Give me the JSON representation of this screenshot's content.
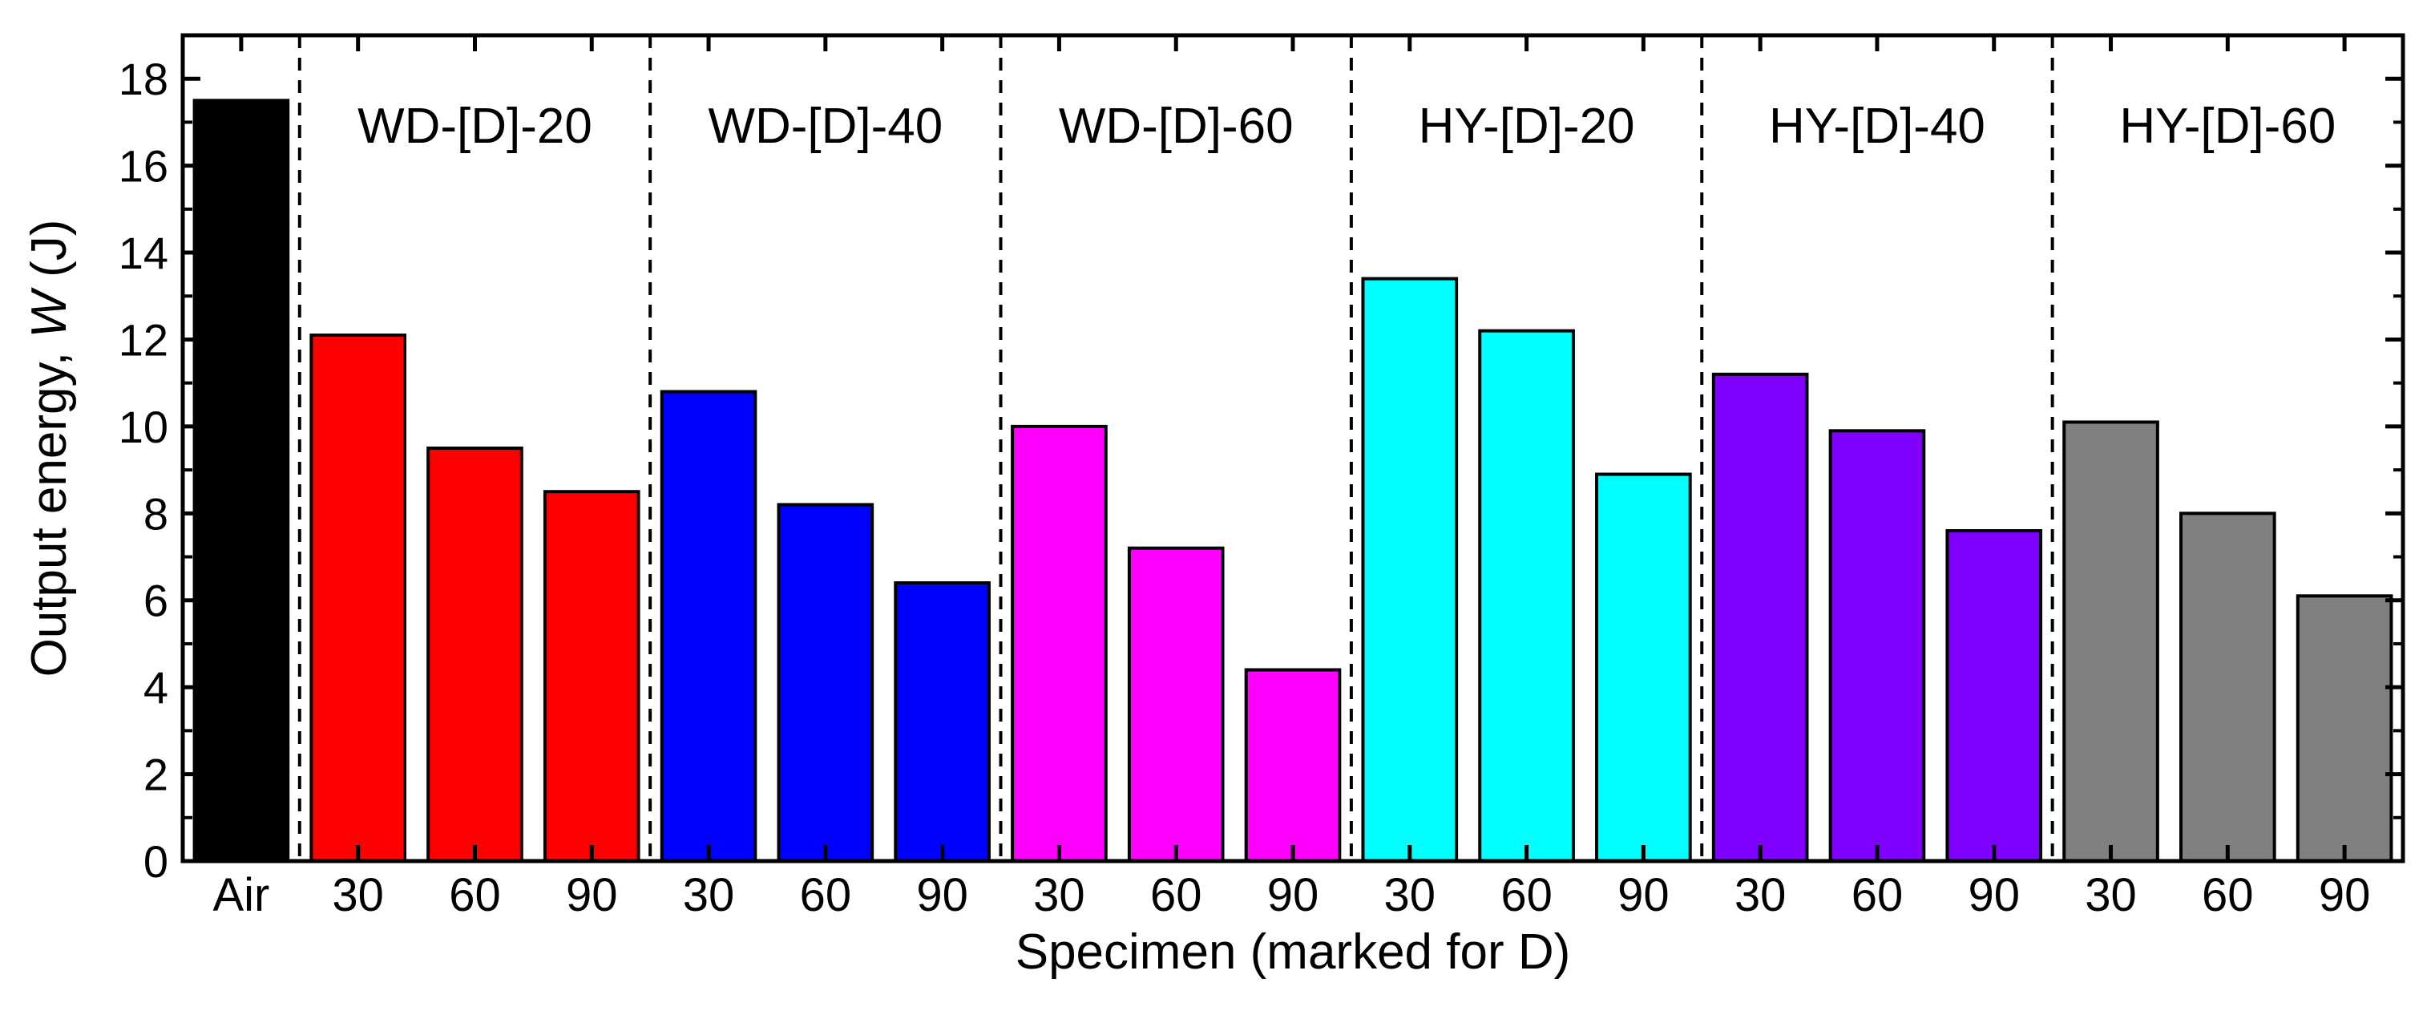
{
  "chart_data": {
    "type": "bar",
    "title": "",
    "xlabel": "Specimen (marked for D)",
    "ylabel": {
      "prefix": "Output energy, ",
      "italic": "W",
      "suffix": " (J)"
    },
    "ylim": [
      0,
      19
    ],
    "yticks": [
      0,
      2,
      4,
      6,
      8,
      10,
      12,
      14,
      16,
      18
    ],
    "grid": false,
    "legend": "none",
    "baseline": {
      "label": "Air",
      "value": 17.5,
      "color": "#000000"
    },
    "groups": [
      {
        "name": "WD-[D]-20",
        "color": "#ff0000",
        "categories": [
          "30",
          "60",
          "90"
        ],
        "values": [
          12.1,
          9.5,
          8.5
        ]
      },
      {
        "name": "WD-[D]-40",
        "color": "#0000ff",
        "categories": [
          "30",
          "60",
          "90"
        ],
        "values": [
          10.8,
          8.2,
          6.4
        ]
      },
      {
        "name": "WD-[D]-60",
        "color": "#ff00ff",
        "categories": [
          "30",
          "60",
          "90"
        ],
        "values": [
          10.0,
          7.2,
          4.4
        ]
      },
      {
        "name": "HY-[D]-20",
        "color": "#00ffff",
        "categories": [
          "30",
          "60",
          "90"
        ],
        "values": [
          13.4,
          12.2,
          8.9
        ]
      },
      {
        "name": "HY-[D]-40",
        "color": "#8000ff",
        "categories": [
          "30",
          "60",
          "90"
        ],
        "values": [
          11.2,
          9.9,
          7.6
        ]
      },
      {
        "name": "HY-[D]-60",
        "color": "#808080",
        "categories": [
          "30",
          "60",
          "90"
        ],
        "values": [
          10.1,
          8.0,
          6.1
        ]
      }
    ]
  }
}
